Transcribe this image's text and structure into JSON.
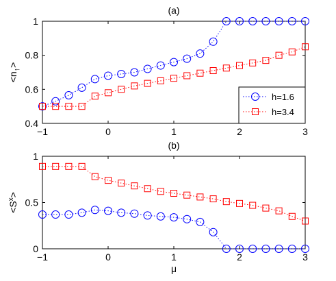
{
  "chart_data": [
    {
      "type": "scatter",
      "title": "(a)",
      "xlabel": "",
      "ylabel": "<n",
      "ylabel_sub": "↑",
      "ylabel_close": ">",
      "xlim": [
        -1,
        3
      ],
      "ylim": [
        0.4,
        1
      ],
      "xticks": [
        -1,
        0,
        1,
        2,
        3
      ],
      "xtick_labels": [
        "−1",
        "0",
        "1",
        "2",
        "3"
      ],
      "yticks": [
        0.4,
        0.6,
        0.8,
        1
      ],
      "ytick_labels": [
        "0.4",
        "0.6",
        "0.8",
        "1"
      ],
      "grid": false,
      "legend_position": "bottom-right",
      "series": [
        {
          "name": "h=1.6",
          "marker": "circle",
          "color": "#0000ff",
          "line_style": "dotted",
          "x": [
            -1,
            -0.8,
            -0.6,
            -0.4,
            -0.2,
            0,
            0.2,
            0.4,
            0.6,
            0.8,
            1,
            1.2,
            1.4,
            1.6,
            1.8,
            2,
            2.2,
            2.4,
            2.6,
            2.8,
            3
          ],
          "y": [
            0.5,
            0.53,
            0.565,
            0.61,
            0.66,
            0.68,
            0.69,
            0.7,
            0.72,
            0.74,
            0.76,
            0.78,
            0.81,
            0.88,
            1.0,
            1.0,
            1.0,
            1.0,
            1.0,
            1.0,
            1.0
          ]
        },
        {
          "name": "h=3.4",
          "marker": "square",
          "color": "#ff0000",
          "line_style": "dotted",
          "x": [
            -1,
            -0.8,
            -0.6,
            -0.4,
            -0.2,
            0,
            0.2,
            0.4,
            0.6,
            0.8,
            1,
            1.2,
            1.4,
            1.6,
            1.8,
            2,
            2.2,
            2.4,
            2.6,
            2.8,
            3
          ],
          "y": [
            0.5,
            0.5,
            0.5,
            0.5,
            0.56,
            0.58,
            0.6,
            0.62,
            0.635,
            0.65,
            0.665,
            0.68,
            0.695,
            0.71,
            0.725,
            0.74,
            0.755,
            0.77,
            0.8,
            0.82,
            0.85
          ]
        }
      ]
    },
    {
      "type": "scatter",
      "title": "(b)",
      "xlabel": "μ",
      "ylabel": "<S",
      "ylabel_sup": "x",
      "ylabel_close": ">",
      "xlim": [
        -1,
        3
      ],
      "ylim": [
        0,
        1
      ],
      "xticks": [
        -1,
        0,
        1,
        2,
        3
      ],
      "xtick_labels": [
        "−1",
        "0",
        "1",
        "2",
        "3"
      ],
      "yticks": [
        0,
        0.5,
        1
      ],
      "ytick_labels": [
        "0",
        "0.5",
        "1"
      ],
      "grid": false,
      "series": [
        {
          "name": "h=1.6",
          "marker": "circle",
          "color": "#0000ff",
          "line_style": "dotted",
          "x": [
            -1,
            -0.8,
            -0.6,
            -0.4,
            -0.2,
            0,
            0.2,
            0.4,
            0.6,
            0.8,
            1,
            1.2,
            1.4,
            1.6,
            1.8,
            2,
            2.2,
            2.4,
            2.6,
            2.8,
            3
          ],
          "y": [
            0.37,
            0.37,
            0.37,
            0.39,
            0.42,
            0.41,
            0.39,
            0.38,
            0.36,
            0.35,
            0.34,
            0.32,
            0.29,
            0.18,
            0.0,
            0.0,
            0.0,
            0.0,
            0.0,
            0.0,
            0.0
          ]
        },
        {
          "name": "h=3.4",
          "marker": "square",
          "color": "#ff0000",
          "line_style": "dotted",
          "x": [
            -1,
            -0.8,
            -0.6,
            -0.4,
            -0.2,
            0,
            0.2,
            0.4,
            0.6,
            0.8,
            1,
            1.2,
            1.4,
            1.6,
            1.8,
            2,
            2.2,
            2.4,
            2.6,
            2.8,
            3
          ],
          "y": [
            0.89,
            0.89,
            0.89,
            0.89,
            0.78,
            0.74,
            0.71,
            0.68,
            0.65,
            0.62,
            0.6,
            0.58,
            0.56,
            0.54,
            0.51,
            0.49,
            0.47,
            0.44,
            0.41,
            0.35,
            0.3
          ]
        }
      ]
    }
  ]
}
